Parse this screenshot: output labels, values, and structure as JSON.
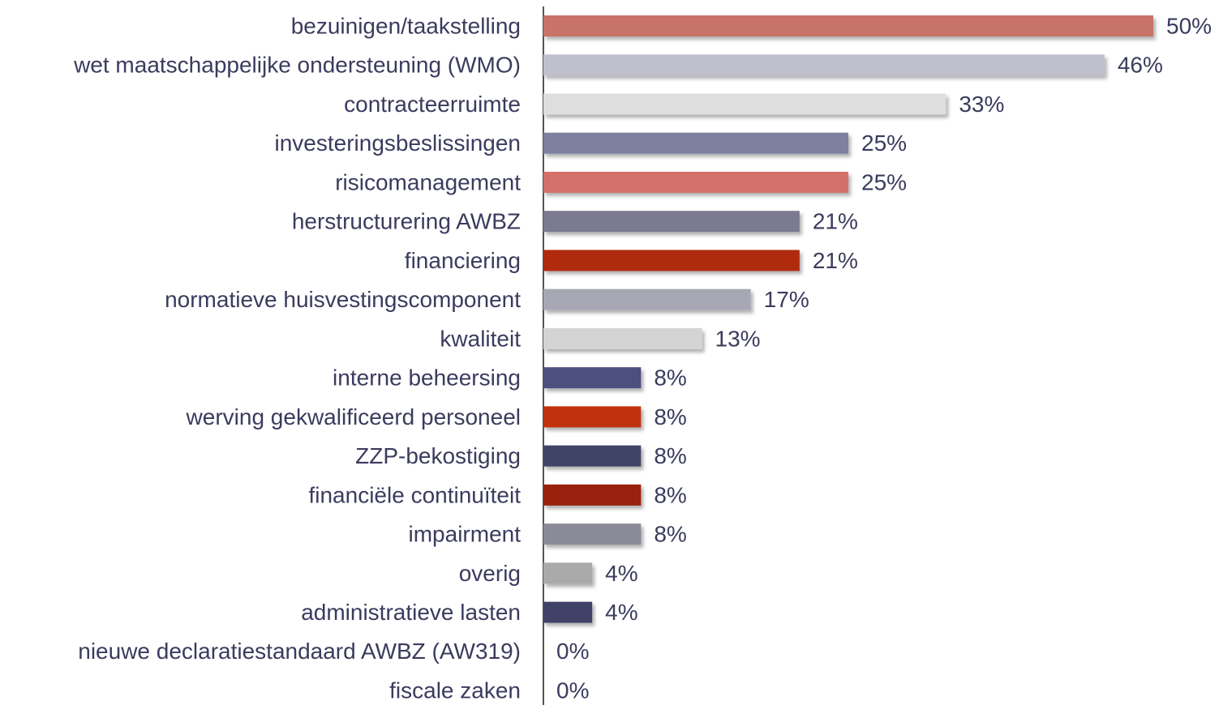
{
  "chart_data": {
    "type": "bar",
    "orientation": "horizontal",
    "categories": [
      "bezuinigen/taakstelling",
      "wet maatschappelijke ondersteuning (WMO)",
      "contracteerruimte",
      "investeringsbeslissingen",
      "risicomanagement",
      "herstructurering AWBZ",
      "financiering",
      "normatieve huisvestingscomponent",
      "kwaliteit",
      "interne beheersing",
      "werving gekwalificeerd personeel",
      "ZZP-bekostiging",
      "financiële continuïteit",
      "impairment",
      "overig",
      "administratieve lasten",
      "nieuwe declaratiestandaard AWBZ (AW319)",
      "fiscale zaken"
    ],
    "values": [
      50,
      46,
      33,
      25,
      25,
      21,
      21,
      17,
      13,
      8,
      8,
      8,
      8,
      8,
      4,
      4,
      0,
      0
    ],
    "value_labels": [
      "50%",
      "46%",
      "33%",
      "25%",
      "25%",
      "21%",
      "21%",
      "17%",
      "13%",
      "8%",
      "8%",
      "8%",
      "8%",
      "8%",
      "4%",
      "4%",
      "0%",
      "0%"
    ],
    "colors": [
      "#c8736a",
      "#c0c0cc",
      "#dedede",
      "#7e80a0",
      "#d4706a",
      "#7b7a90",
      "#b02a10",
      "#a8a8b4",
      "#d4d4d4",
      "#4e5080",
      "#c03010",
      "#404468",
      "#982010",
      "#8a8a98",
      "#aaaaaa",
      "#3f4268",
      "#3f4268",
      "#3f4268"
    ],
    "xlim": [
      0,
      50
    ]
  }
}
